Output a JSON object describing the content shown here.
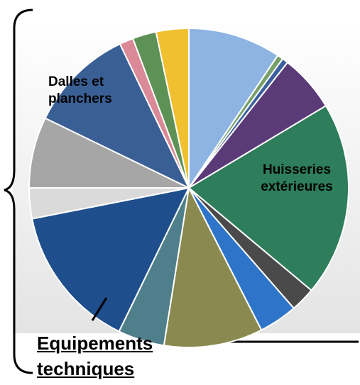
{
  "chart_data": {
    "type": "pie",
    "categories": [
      null,
      null,
      null,
      null,
      "Huisseries extérieures",
      null,
      null,
      null,
      null,
      "Equipements techniques",
      null,
      null,
      "Dalles et planchers",
      null,
      null,
      null
    ],
    "values": [
      9.4,
      0.6,
      0.6,
      5.8,
      19.7,
      2.5,
      3.9,
      10,
      4.7,
      14.7,
      3.1,
      7.2,
      10.7,
      1.4,
      2.4,
      3.3
    ],
    "colors": [
      "#8db4e2",
      "#76a06a",
      "#3b5fa0",
      "#5b3a78",
      "#2e7d5b",
      "#4a4a4a",
      "#2e74c8",
      "#8a8a50",
      "#4f7f8a",
      "#1f4e8c",
      "#dadada",
      "#a6a6a6",
      "#3a5f95",
      "#d98a96",
      "#5e9155",
      "#f0c030"
    ]
  }
}
